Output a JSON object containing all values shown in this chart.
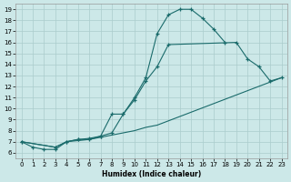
{
  "xlabel": "Humidex (Indice chaleur)",
  "background_color": "#cce8e8",
  "grid_color": "#aacccc",
  "line_color": "#1a6b6b",
  "xlim": [
    -0.5,
    23.5
  ],
  "ylim": [
    5.5,
    19.5
  ],
  "xticks": [
    0,
    1,
    2,
    3,
    4,
    5,
    6,
    7,
    8,
    9,
    10,
    11,
    12,
    13,
    14,
    15,
    16,
    17,
    18,
    19,
    20,
    21,
    22,
    23
  ],
  "yticks": [
    6,
    7,
    8,
    9,
    10,
    11,
    12,
    13,
    14,
    15,
    16,
    17,
    18,
    19
  ],
  "s1x": [
    0,
    1,
    2,
    3,
    4,
    5,
    6,
    7,
    8,
    9,
    10,
    11,
    12,
    13,
    14,
    15,
    16,
    17,
    18
  ],
  "s1y": [
    7.0,
    6.5,
    6.3,
    6.3,
    7.0,
    7.2,
    7.2,
    7.5,
    7.8,
    9.5,
    11.0,
    12.8,
    16.8,
    18.5,
    19.0,
    19.0,
    18.2,
    17.2,
    16.0
  ],
  "s2x": [
    0,
    3,
    4,
    5,
    6,
    7,
    8,
    9,
    10,
    11,
    12,
    13,
    19,
    20,
    21,
    22,
    23
  ],
  "s2y": [
    7.0,
    6.5,
    7.0,
    7.2,
    7.3,
    7.5,
    9.5,
    9.5,
    10.8,
    12.5,
    13.8,
    15.8,
    16.0,
    14.5,
    13.8,
    12.5,
    12.8
  ],
  "s3x": [
    0,
    3,
    4,
    5,
    6,
    7,
    8,
    9,
    10,
    11,
    12,
    23
  ],
  "s3y": [
    7.0,
    6.5,
    7.0,
    7.1,
    7.2,
    7.4,
    7.6,
    7.8,
    8.0,
    8.3,
    8.5,
    12.8
  ]
}
